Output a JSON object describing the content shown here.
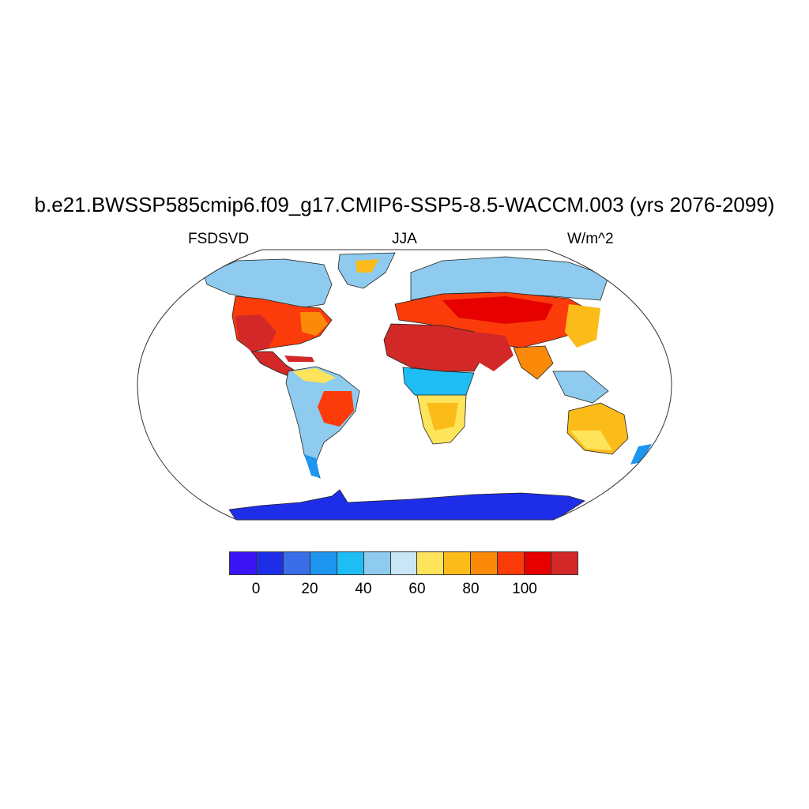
{
  "header": {
    "title": "b.e21.BWSSP585cmip6.f09_g17.CMIP6-SSP5-8.5-WACCM.003 (yrs 2076-2099)",
    "variable": "FSDSVD",
    "season": "JJA",
    "units": "W/m^2"
  },
  "colorbar": {
    "colors": [
      "#3b14f5",
      "#1e2ee8",
      "#3a6de8",
      "#1e96f0",
      "#1ebef5",
      "#8ecbee",
      "#c8e6f5",
      "#fde45a",
      "#fbbc1a",
      "#fb8a0a",
      "#fb3c0a",
      "#e60000",
      "#d22828"
    ],
    "tick_labels": [
      "0",
      "20",
      "40",
      "60",
      "80",
      "100"
    ]
  }
}
